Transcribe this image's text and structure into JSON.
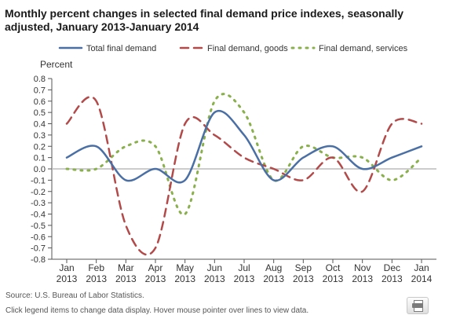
{
  "title": "Monthly percent changes in selected final demand price indexes, seasonally adjusted, January 2013-January 2014",
  "source": "Source: U.S. Bureau of Labor Statistics.",
  "hint": "Click legend items to change data display. Hover mouse pointer over lines to view data.",
  "print_icon": "printer-icon",
  "chart_data": {
    "type": "line",
    "ylabel": "Percent",
    "ylim": [
      -0.8,
      0.8
    ],
    "yticks": [
      "0.8",
      "0.7",
      "0.6",
      "0.5",
      "0.4",
      "0.3",
      "0.2",
      "0.1",
      "0.0",
      "-0.1",
      "-0.2",
      "-0.3",
      "-0.4",
      "-0.5",
      "-0.6",
      "-0.7",
      "-0.8"
    ],
    "categories": [
      [
        "Jan",
        "2013"
      ],
      [
        "Feb",
        "2013"
      ],
      [
        "Mar",
        "2013"
      ],
      [
        "Apr",
        "2013"
      ],
      [
        "May",
        "2013"
      ],
      [
        "Jun",
        "2013"
      ],
      [
        "Jul",
        "2013"
      ],
      [
        "Aug",
        "2013"
      ],
      [
        "Sep",
        "2013"
      ],
      [
        "Oct",
        "2013"
      ],
      [
        "Nov",
        "2013"
      ],
      [
        "Dec",
        "2013"
      ],
      [
        "Jan",
        "2014"
      ]
    ],
    "grid": false,
    "zero_line": true,
    "legend_position": "top",
    "series": [
      {
        "name": "Total final demand",
        "color": "#4a6fa5",
        "dash": "solid",
        "values": [
          0.1,
          0.2,
          -0.1,
          0.0,
          -0.1,
          0.5,
          0.3,
          -0.1,
          0.1,
          0.2,
          0.0,
          0.1,
          0.2
        ]
      },
      {
        "name": "Final demand, goods",
        "color": "#b34a4a",
        "dash": "dashed",
        "values": [
          0.4,
          0.6,
          -0.5,
          -0.7,
          0.4,
          0.3,
          0.1,
          0.0,
          -0.1,
          0.1,
          -0.2,
          0.4,
          0.4
        ]
      },
      {
        "name": "Final demand, services",
        "color": "#8ab04e",
        "dash": "dotted",
        "values": [
          0.0,
          0.0,
          0.2,
          0.2,
          -0.4,
          0.6,
          0.5,
          -0.1,
          0.2,
          0.1,
          0.1,
          -0.1,
          0.1
        ]
      }
    ]
  }
}
